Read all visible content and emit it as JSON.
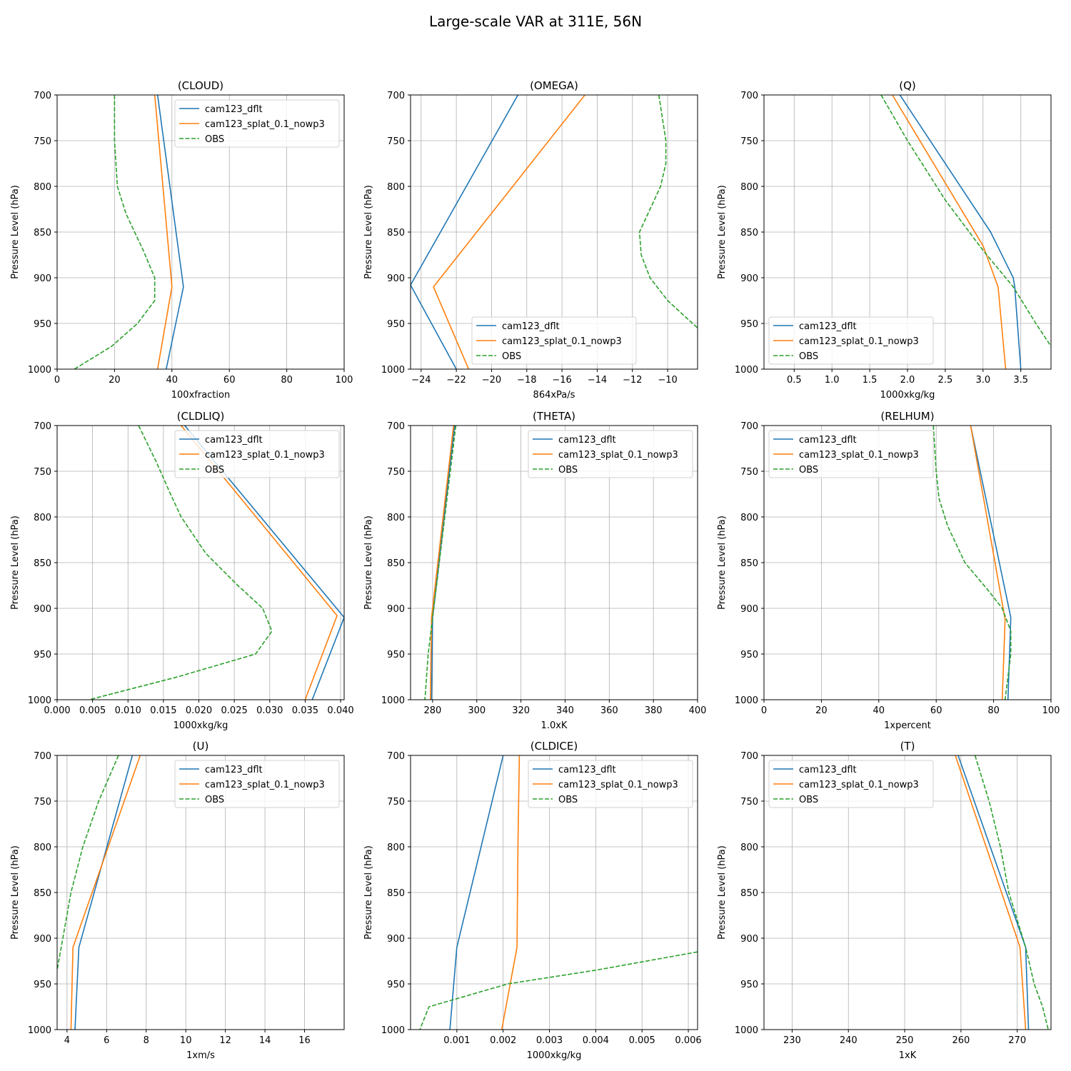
{
  "figure": {
    "title": "Large-scale VAR at 311E, 56N",
    "ylabel": "Pressure Level (hPa)",
    "legend_labels": [
      "cam123_dflt",
      "cam123_splat_0.1_nowp3",
      "OBS"
    ],
    "colors": {
      "cam123_dflt": "#1f77b4",
      "cam123_splat_0.1_nowp3": "#ff7f0e",
      "OBS": "#2ca02c"
    }
  },
  "chart_data": [
    {
      "type": "line",
      "title": "(CLOUD)",
      "xlabel": "100xfraction",
      "ylabel": "Pressure Level (hPa)",
      "xlim": [
        0,
        100
      ],
      "ylim": [
        700,
        1000
      ],
      "y_inverted": true,
      "xticks": [
        0,
        20,
        40,
        60,
        80,
        100
      ],
      "xtick_labels": [
        "0",
        "20",
        "40",
        "60",
        "80",
        "100"
      ],
      "yticks": [
        700,
        750,
        800,
        850,
        900,
        950,
        1000
      ],
      "ytick_labels": [
        "700",
        "750",
        "800",
        "850",
        "900",
        "950",
        "1000"
      ],
      "legend_loc": "upper right",
      "grid": true,
      "series": [
        {
          "name": "cam123_dflt",
          "style": "solid",
          "x": [
            35,
            44,
            38
          ],
          "y": [
            700,
            910,
            1000
          ]
        },
        {
          "name": "cam123_splat_0.1_nowp3",
          "style": "solid",
          "x": [
            34,
            40,
            35
          ],
          "y": [
            700,
            910,
            1000
          ]
        },
        {
          "name": "OBS",
          "style": "dashed",
          "x": [
            20,
            20,
            21,
            24,
            30,
            34,
            34,
            28,
            19,
            6
          ],
          "y": [
            700,
            750,
            800,
            830,
            870,
            900,
            925,
            950,
            975,
            1000
          ]
        }
      ]
    },
    {
      "type": "line",
      "title": "(OMEGA)",
      "xlabel": "864xPa/s",
      "ylabel": "Pressure Level (hPa)",
      "xlim": [
        -24.6,
        -8.3
      ],
      "ylim": [
        700,
        1000
      ],
      "y_inverted": true,
      "xticks": [
        -24,
        -22,
        -20,
        -18,
        -16,
        -14,
        -12,
        -10
      ],
      "xtick_labels": [
        "−24",
        "−22",
        "−20",
        "−18",
        "−16",
        "−14",
        "−12",
        "−10"
      ],
      "yticks": [
        700,
        750,
        800,
        850,
        900,
        950,
        1000
      ],
      "ytick_labels": [
        "700",
        "750",
        "800",
        "850",
        "900",
        "950",
        "1000"
      ],
      "legend_loc": "lower center",
      "grid": true,
      "series": [
        {
          "name": "cam123_dflt",
          "style": "solid",
          "x": [
            -18.5,
            -24.6,
            -22
          ],
          "y": [
            700,
            908,
            1000
          ]
        },
        {
          "name": "cam123_splat_0.1_nowp3",
          "style": "solid",
          "x": [
            -14.7,
            -23.3,
            -21.3
          ],
          "y": [
            700,
            910,
            1000
          ]
        },
        {
          "name": "OBS",
          "style": "dashed",
          "x": [
            -10.5,
            -10.1,
            -10.1,
            -10.4,
            -11,
            -11.6,
            -11.5,
            -11,
            -10,
            -8.3
          ],
          "y": [
            700,
            750,
            775,
            800,
            825,
            850,
            875,
            900,
            925,
            955
          ]
        }
      ]
    },
    {
      "type": "line",
      "title": "(Q)",
      "xlabel": "1000xkg/kg",
      "ylabel": "Pressure Level (hPa)",
      "xlim": [
        0.1,
        3.9
      ],
      "ylim": [
        700,
        1000
      ],
      "y_inverted": true,
      "xticks": [
        0.5,
        1.0,
        1.5,
        2.0,
        2.5,
        3.0,
        3.5
      ],
      "xtick_labels": [
        "0.5",
        "1.0",
        "1.5",
        "2.0",
        "2.5",
        "3.0",
        "3.5"
      ],
      "yticks": [
        700,
        750,
        800,
        850,
        900,
        950,
        1000
      ],
      "ytick_labels": [
        "700",
        "750",
        "800",
        "850",
        "900",
        "950",
        "1000"
      ],
      "legend_loc": "lower left",
      "grid": true,
      "series": [
        {
          "name": "cam123_dflt",
          "style": "solid",
          "x": [
            1.9,
            3.1,
            3.4,
            3.42,
            3.5
          ],
          "y": [
            700,
            850,
            900,
            910,
            1000
          ]
        },
        {
          "name": "cam123_splat_0.1_nowp3",
          "style": "solid",
          "x": [
            1.8,
            3.0,
            3.2,
            3.3
          ],
          "y": [
            700,
            865,
            910,
            1000
          ]
        },
        {
          "name": "OBS",
          "style": "dashed",
          "x": [
            1.65,
            2.0,
            2.5,
            3.0,
            3.4,
            3.7,
            3.9
          ],
          "y": [
            700,
            750,
            815,
            870,
            910,
            950,
            975
          ]
        }
      ]
    },
    {
      "type": "line",
      "title": "(CLDLIQ)",
      "xlabel": "1000xkg/kg",
      "ylabel": "Pressure Level (hPa)",
      "xlim": [
        0,
        0.0405
      ],
      "ylim": [
        700,
        1000
      ],
      "y_inverted": true,
      "xticks": [
        0,
        0.005,
        0.01,
        0.015,
        0.02,
        0.025,
        0.03,
        0.035,
        0.04
      ],
      "xtick_labels": [
        "0.000",
        "0.005",
        "0.010",
        "0.015",
        "0.020",
        "0.025",
        "0.030",
        "0.035",
        "0.040"
      ],
      "yticks": [
        700,
        750,
        800,
        850,
        900,
        950,
        1000
      ],
      "ytick_labels": [
        "700",
        "750",
        "800",
        "850",
        "900",
        "950",
        "1000"
      ],
      "legend_loc": "upper right",
      "grid": true,
      "series": [
        {
          "name": "cam123_dflt",
          "style": "solid",
          "x": [
            0.018,
            0.0405,
            0.036
          ],
          "y": [
            700,
            910,
            1000
          ]
        },
        {
          "name": "cam123_splat_0.1_nowp3",
          "style": "solid",
          "x": [
            0.0175,
            0.0395,
            0.035
          ],
          "y": [
            700,
            908,
            1000
          ]
        },
        {
          "name": "OBS",
          "style": "dashed",
          "x": [
            0.0115,
            0.014,
            0.016,
            0.0175,
            0.021,
            0.0255,
            0.029,
            0.0303,
            0.028,
            0.017,
            0.0045
          ],
          "y": [
            700,
            740,
            775,
            800,
            840,
            875,
            900,
            925,
            950,
            975,
            1000
          ]
        }
      ]
    },
    {
      "type": "line",
      "title": "(THETA)",
      "xlabel": "1.0xK",
      "ylabel": "Pressure Level (hPa)",
      "xlim": [
        270,
        400
      ],
      "ylim": [
        700,
        1000
      ],
      "y_inverted": true,
      "xticks": [
        280,
        300,
        320,
        340,
        360,
        380,
        400
      ],
      "xtick_labels": [
        "280",
        "300",
        "320",
        "340",
        "360",
        "380",
        "400"
      ],
      "yticks": [
        700,
        750,
        800,
        850,
        900,
        950,
        1000
      ],
      "ytick_labels": [
        "700",
        "750",
        "800",
        "850",
        "900",
        "950",
        "1000"
      ],
      "legend_loc": "upper right",
      "grid": true,
      "series": [
        {
          "name": "cam123_dflt",
          "style": "solid",
          "x": [
            290,
            280,
            279.5
          ],
          "y": [
            700,
            910,
            1000
          ]
        },
        {
          "name": "cam123_splat_0.1_nowp3",
          "style": "solid",
          "x": [
            289.5,
            279.5,
            279
          ],
          "y": [
            700,
            910,
            1000
          ]
        },
        {
          "name": "OBS",
          "style": "dashed",
          "x": [
            290.5,
            280.5,
            278,
            276.5
          ],
          "y": [
            700,
            900,
            950,
            1000
          ]
        }
      ]
    },
    {
      "type": "line",
      "title": "(RELHUM)",
      "xlabel": "1xpercent",
      "ylabel": "Pressure Level (hPa)",
      "xlim": [
        0,
        100
      ],
      "ylim": [
        700,
        1000
      ],
      "y_inverted": true,
      "xticks": [
        0,
        20,
        40,
        60,
        80,
        100
      ],
      "xtick_labels": [
        "0",
        "20",
        "40",
        "60",
        "80",
        "100"
      ],
      "yticks": [
        700,
        750,
        800,
        850,
        900,
        950,
        1000
      ],
      "ytick_labels": [
        "700",
        "750",
        "800",
        "850",
        "900",
        "950",
        "1000"
      ],
      "legend_loc": "upper left",
      "grid": true,
      "series": [
        {
          "name": "cam123_dflt",
          "style": "solid",
          "x": [
            72,
            86,
            85
          ],
          "y": [
            700,
            910,
            1000
          ]
        },
        {
          "name": "cam123_splat_0.1_nowp3",
          "style": "solid",
          "x": [
            72,
            84,
            83
          ],
          "y": [
            700,
            912,
            1000
          ]
        },
        {
          "name": "OBS",
          "style": "dashed",
          "x": [
            59,
            60,
            61,
            64,
            70,
            78,
            83,
            86,
            86,
            84
          ],
          "y": [
            700,
            750,
            780,
            810,
            850,
            880,
            900,
            925,
            950,
            1000
          ]
        }
      ]
    },
    {
      "type": "line",
      "title": "(U)",
      "xlabel": "1xm/s",
      "ylabel": "Pressure Level (hPa)",
      "xlim": [
        3.5,
        18
      ],
      "ylim": [
        700,
        1000
      ],
      "y_inverted": true,
      "xticks": [
        4,
        6,
        8,
        10,
        12,
        14,
        16
      ],
      "xtick_labels": [
        "4",
        "6",
        "8",
        "10",
        "12",
        "14",
        "16"
      ],
      "yticks": [
        700,
        750,
        800,
        850,
        900,
        950,
        1000
      ],
      "ytick_labels": [
        "700",
        "750",
        "800",
        "850",
        "900",
        "950",
        "1000"
      ],
      "legend_loc": "upper right",
      "grid": true,
      "series": [
        {
          "name": "cam123_dflt",
          "style": "solid",
          "x": [
            7.3,
            4.6,
            4.4
          ],
          "y": [
            700,
            910,
            1000
          ]
        },
        {
          "name": "cam123_splat_0.1_nowp3",
          "style": "solid",
          "x": [
            7.7,
            4.3,
            4.2
          ],
          "y": [
            700,
            910,
            1000
          ]
        },
        {
          "name": "OBS",
          "style": "dashed",
          "x": [
            6.6,
            6.2,
            5.6,
            4.8,
            4.2,
            3.5
          ],
          "y": [
            700,
            720,
            750,
            800,
            850,
            935
          ]
        }
      ]
    },
    {
      "type": "line",
      "title": "(CLDICE)",
      "xlabel": "1000xkg/kg",
      "ylabel": "Pressure Level (hPa)",
      "xlim": [
        0,
        0.0062
      ],
      "ylim": [
        700,
        1000
      ],
      "y_inverted": true,
      "xticks": [
        0.001,
        0.002,
        0.003,
        0.004,
        0.005,
        0.006
      ],
      "xtick_labels": [
        "0.001",
        "0.002",
        "0.003",
        "0.004",
        "0.005",
        "0.006"
      ],
      "yticks": [
        700,
        750,
        800,
        850,
        900,
        950,
        1000
      ],
      "ytick_labels": [
        "700",
        "750",
        "800",
        "850",
        "900",
        "950",
        "1000"
      ],
      "legend_loc": "upper right",
      "grid": true,
      "series": [
        {
          "name": "cam123_dflt",
          "style": "solid",
          "x": [
            0.002,
            0.001,
            0.00085
          ],
          "y": [
            700,
            910,
            1000
          ]
        },
        {
          "name": "cam123_splat_0.1_nowp3",
          "style": "solid",
          "x": [
            0.00235,
            0.00232,
            0.0023,
            0.00197
          ],
          "y": [
            700,
            800,
            910,
            1000
          ]
        },
        {
          "name": "OBS",
          "style": "dashed",
          "x": [
            0.0062,
            0.004,
            0.0021,
            0.0004,
            0.0002
          ],
          "y": [
            915,
            935,
            950,
            975,
            1000
          ]
        }
      ]
    },
    {
      "type": "line",
      "title": "(T)",
      "xlabel": "1xK",
      "ylabel": "Pressure Level (hPa)",
      "xlim": [
        225,
        276
      ],
      "ylim": [
        700,
        1000
      ],
      "y_inverted": true,
      "xticks": [
        230,
        240,
        250,
        260,
        270
      ],
      "xtick_labels": [
        "230",
        "240",
        "250",
        "260",
        "270"
      ],
      "yticks": [
        700,
        750,
        800,
        850,
        900,
        950,
        1000
      ],
      "ytick_labels": [
        "700",
        "750",
        "800",
        "850",
        "900",
        "950",
        "1000"
      ],
      "legend_loc": "upper left",
      "grid": true,
      "series": [
        {
          "name": "cam123_dflt",
          "style": "solid",
          "x": [
            259.5,
            271.5,
            272
          ],
          "y": [
            700,
            910,
            1000
          ]
        },
        {
          "name": "cam123_splat_0.1_nowp3",
          "style": "solid",
          "x": [
            259,
            270.5,
            271.5
          ],
          "y": [
            700,
            910,
            1000
          ]
        },
        {
          "name": "OBS",
          "style": "dashed",
          "x": [
            262.5,
            265,
            267,
            268.5,
            270,
            271.5,
            273,
            274.5,
            275.5
          ],
          "y": [
            700,
            750,
            800,
            850,
            880,
            910,
            950,
            975,
            1000
          ]
        }
      ]
    }
  ]
}
